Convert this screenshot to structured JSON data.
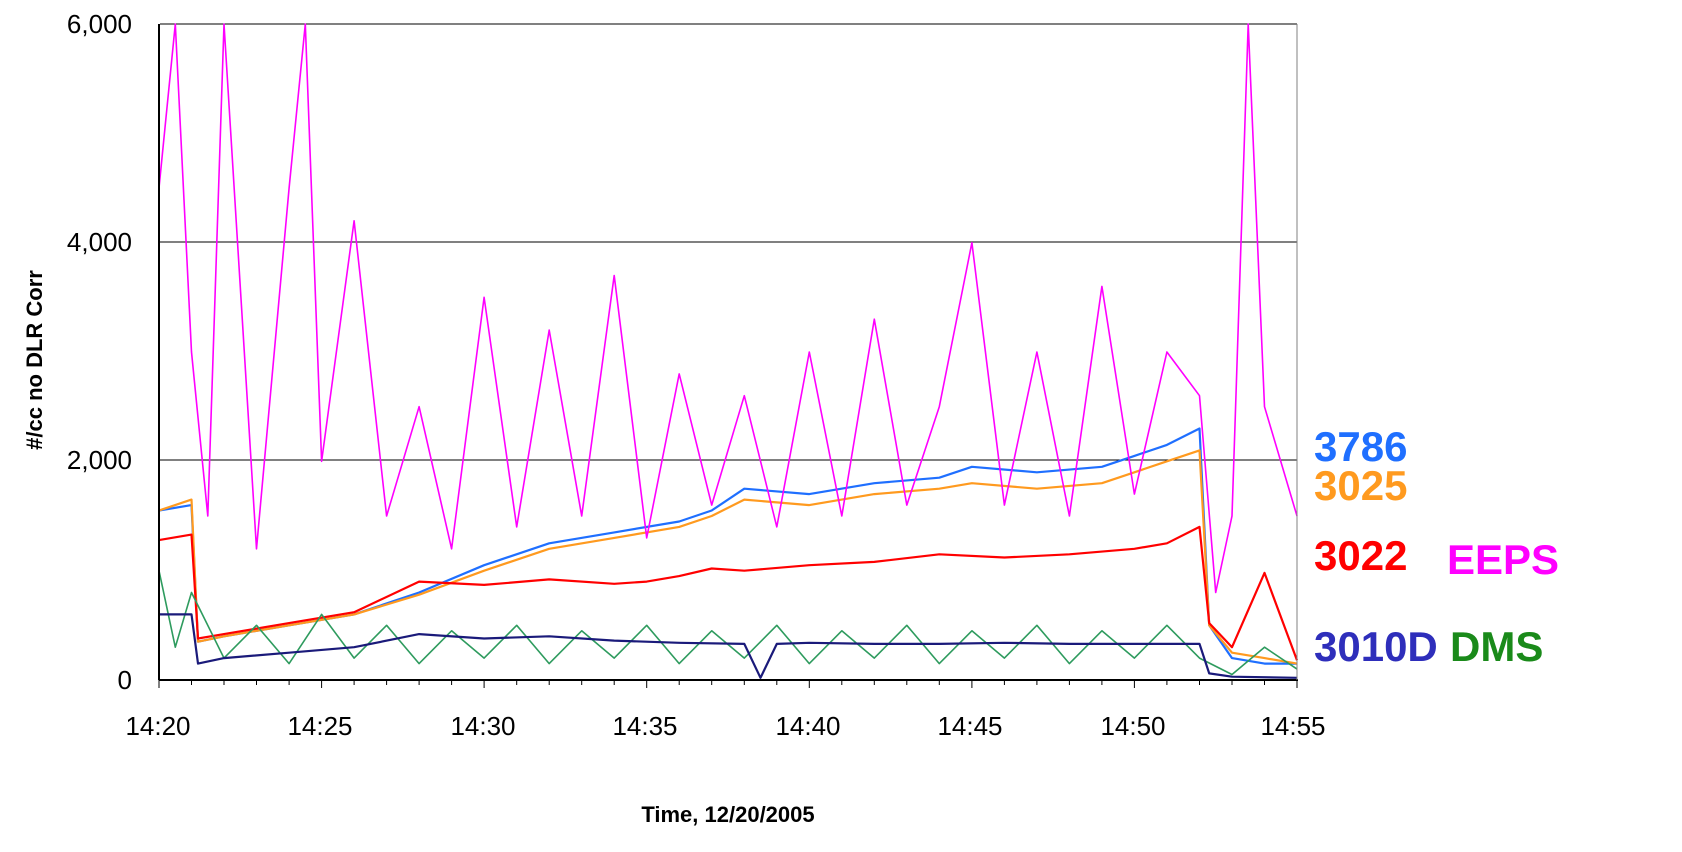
{
  "chart_data": {
    "type": "line",
    "xlabel": "Time, 12/20/2005",
    "ylabel": "#/cc no DLR Corr",
    "x_ticks": [
      "14:20",
      "14:25",
      "14:30",
      "14:35",
      "14:40",
      "14:45",
      "14:50",
      "14:55"
    ],
    "y_ticks": [
      "0",
      "2,000",
      "4,000",
      "6,000"
    ],
    "xlim": [
      "14:20",
      "14:55"
    ],
    "ylim": [
      0,
      6000
    ],
    "grid": "horizontal",
    "series": [
      {
        "name": "3786",
        "color": "#1f6fff",
        "values": [
          [
            "14:20",
            1550
          ],
          [
            "14:21",
            1600
          ],
          [
            "14:21.2",
            350
          ],
          [
            "14:22",
            400
          ],
          [
            "14:24",
            500
          ],
          [
            "14:26",
            600
          ],
          [
            "14:28",
            800
          ],
          [
            "14:30",
            1050
          ],
          [
            "14:32",
            1250
          ],
          [
            "14:34",
            1350
          ],
          [
            "14:36",
            1450
          ],
          [
            "14:37",
            1550
          ],
          [
            "14:38",
            1750
          ],
          [
            "14:40",
            1700
          ],
          [
            "14:42",
            1800
          ],
          [
            "14:44",
            1850
          ],
          [
            "14:45",
            1950
          ],
          [
            "14:47",
            1900
          ],
          [
            "14:49",
            1950
          ],
          [
            "14:50",
            2050
          ],
          [
            "14:51",
            2150
          ],
          [
            "14:52",
            2300
          ],
          [
            "14:52.3",
            500
          ],
          [
            "14:53",
            200
          ],
          [
            "14:54",
            150
          ],
          [
            "14:55",
            150
          ]
        ]
      },
      {
        "name": "3025",
        "color": "#ff9a1f",
        "values": [
          [
            "14:20",
            1550
          ],
          [
            "14:21",
            1650
          ],
          [
            "14:21.2",
            350
          ],
          [
            "14:22",
            400
          ],
          [
            "14:24",
            500
          ],
          [
            "14:26",
            600
          ],
          [
            "14:28",
            780
          ],
          [
            "14:30",
            1000
          ],
          [
            "14:32",
            1200
          ],
          [
            "14:34",
            1300
          ],
          [
            "14:36",
            1400
          ],
          [
            "14:37",
            1500
          ],
          [
            "14:38",
            1650
          ],
          [
            "14:40",
            1600
          ],
          [
            "14:42",
            1700
          ],
          [
            "14:44",
            1750
          ],
          [
            "14:45",
            1800
          ],
          [
            "14:47",
            1750
          ],
          [
            "14:49",
            1800
          ],
          [
            "14:50",
            1900
          ],
          [
            "14:51",
            2000
          ],
          [
            "14:52",
            2100
          ],
          [
            "14:52.3",
            500
          ],
          [
            "14:53",
            250
          ],
          [
            "14:54",
            200
          ],
          [
            "14:55",
            150
          ]
        ]
      },
      {
        "name": "3022",
        "color": "#ff0000",
        "values": [
          [
            "14:20",
            1280
          ],
          [
            "14:21",
            1330
          ],
          [
            "14:21.2",
            380
          ],
          [
            "14:22",
            420
          ],
          [
            "14:24",
            520
          ],
          [
            "14:26",
            620
          ],
          [
            "14:28",
            900
          ],
          [
            "14:30",
            870
          ],
          [
            "14:32",
            920
          ],
          [
            "14:34",
            880
          ],
          [
            "14:35",
            900
          ],
          [
            "14:36",
            950
          ],
          [
            "14:37",
            1020
          ],
          [
            "14:38",
            1000
          ],
          [
            "14:40",
            1050
          ],
          [
            "14:42",
            1080
          ],
          [
            "14:44",
            1150
          ],
          [
            "14:46",
            1120
          ],
          [
            "14:48",
            1150
          ],
          [
            "14:50",
            1200
          ],
          [
            "14:51",
            1250
          ],
          [
            "14:52",
            1400
          ],
          [
            "14:52.3",
            520
          ],
          [
            "14:53",
            300
          ],
          [
            "14:54",
            980
          ],
          [
            "14:55",
            180
          ]
        ]
      },
      {
        "name": "EEPS",
        "color": "#ff00ff",
        "values": [
          [
            "14:20",
            4500
          ],
          [
            "14:20.5",
            6000
          ],
          [
            "14:21",
            3000
          ],
          [
            "14:21.5",
            1500
          ],
          [
            "14:22",
            6000
          ],
          [
            "14:23",
            1200
          ],
          [
            "14:24",
            4500
          ],
          [
            "14:24.5",
            6000
          ],
          [
            "14:25",
            2000
          ],
          [
            "14:26",
            4200
          ],
          [
            "14:27",
            1500
          ],
          [
            "14:28",
            2500
          ],
          [
            "14:29",
            1200
          ],
          [
            "14:30",
            3500
          ],
          [
            "14:31",
            1400
          ],
          [
            "14:32",
            3200
          ],
          [
            "14:33",
            1500
          ],
          [
            "14:34",
            3700
          ],
          [
            "14:35",
            1300
          ],
          [
            "14:36",
            2800
          ],
          [
            "14:37",
            1600
          ],
          [
            "14:38",
            2600
          ],
          [
            "14:39",
            1400
          ],
          [
            "14:40",
            3000
          ],
          [
            "14:41",
            1500
          ],
          [
            "14:42",
            3300
          ],
          [
            "14:43",
            1600
          ],
          [
            "14:44",
            2500
          ],
          [
            "14:45",
            4000
          ],
          [
            "14:46",
            1600
          ],
          [
            "14:47",
            3000
          ],
          [
            "14:48",
            1500
          ],
          [
            "14:49",
            3600
          ],
          [
            "14:50",
            1700
          ],
          [
            "14:51",
            3000
          ],
          [
            "14:52",
            2600
          ],
          [
            "14:52.5",
            800
          ],
          [
            "14:53",
            1500
          ],
          [
            "14:53.5",
            6000
          ],
          [
            "14:54",
            2500
          ],
          [
            "14:55",
            1500
          ]
        ]
      },
      {
        "name": "DMS",
        "color": "#2e9b5e",
        "values": [
          [
            "14:20",
            1000
          ],
          [
            "14:20.5",
            300
          ],
          [
            "14:21",
            800
          ],
          [
            "14:22",
            200
          ],
          [
            "14:23",
            500
          ],
          [
            "14:24",
            150
          ],
          [
            "14:25",
            600
          ],
          [
            "14:26",
            200
          ],
          [
            "14:27",
            500
          ],
          [
            "14:28",
            150
          ],
          [
            "14:29",
            450
          ],
          [
            "14:30",
            200
          ],
          [
            "14:31",
            500
          ],
          [
            "14:32",
            150
          ],
          [
            "14:33",
            450
          ],
          [
            "14:34",
            200
          ],
          [
            "14:35",
            500
          ],
          [
            "14:36",
            150
          ],
          [
            "14:37",
            450
          ],
          [
            "14:38",
            200
          ],
          [
            "14:39",
            500
          ],
          [
            "14:40",
            150
          ],
          [
            "14:41",
            450
          ],
          [
            "14:42",
            200
          ],
          [
            "14:43",
            500
          ],
          [
            "14:44",
            150
          ],
          [
            "14:45",
            450
          ],
          [
            "14:46",
            200
          ],
          [
            "14:47",
            500
          ],
          [
            "14:48",
            150
          ],
          [
            "14:49",
            450
          ],
          [
            "14:50",
            200
          ],
          [
            "14:51",
            500
          ],
          [
            "14:52",
            200
          ],
          [
            "14:53",
            50
          ],
          [
            "14:54",
            300
          ],
          [
            "14:55",
            100
          ]
        ]
      },
      {
        "name": "3010D",
        "color": "#1a1a7a",
        "values": [
          [
            "14:20",
            600
          ],
          [
            "14:21",
            600
          ],
          [
            "14:21.2",
            150
          ],
          [
            "14:22",
            200
          ],
          [
            "14:24",
            250
          ],
          [
            "14:26",
            300
          ],
          [
            "14:28",
            420
          ],
          [
            "14:30",
            380
          ],
          [
            "14:32",
            400
          ],
          [
            "14:34",
            360
          ],
          [
            "14:36",
            340
          ],
          [
            "14:38",
            330
          ],
          [
            "14:38.5",
            20
          ],
          [
            "14:39",
            330
          ],
          [
            "14:40",
            340
          ],
          [
            "14:42",
            330
          ],
          [
            "14:44",
            330
          ],
          [
            "14:46",
            340
          ],
          [
            "14:48",
            330
          ],
          [
            "14:50",
            330
          ],
          [
            "14:52",
            330
          ],
          [
            "14:52.3",
            60
          ],
          [
            "14:53",
            30
          ],
          [
            "14:55",
            20
          ]
        ]
      }
    ],
    "series_labels": [
      "3786",
      "3025",
      "3022",
      "EEPS",
      "3010D",
      "DMS"
    ]
  }
}
